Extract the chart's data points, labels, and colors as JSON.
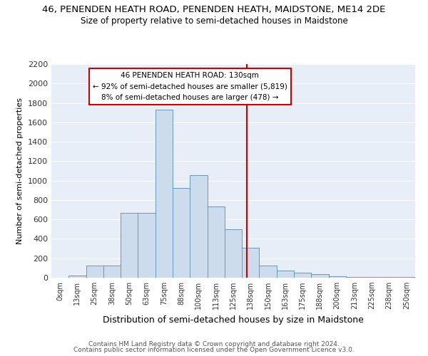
{
  "title1": "46, PENENDEN HEATH ROAD, PENENDEN HEATH, MAIDSTONE, ME14 2DE",
  "title2": "Size of property relative to semi-detached houses in Maidstone",
  "xlabel": "Distribution of semi-detached houses by size in Maidstone",
  "ylabel": "Number of semi-detached properties",
  "footer1": "Contains HM Land Registry data © Crown copyright and database right 2024.",
  "footer2": "Contains public sector information licensed under the Open Government Licence v3.0.",
  "bar_labels": [
    "0sqm",
    "13sqm",
    "25sqm",
    "38sqm",
    "50sqm",
    "63sqm",
    "75sqm",
    "88sqm",
    "100sqm",
    "113sqm",
    "125sqm",
    "138sqm",
    "150sqm",
    "163sqm",
    "175sqm",
    "188sqm",
    "200sqm",
    "213sqm",
    "225sqm",
    "238sqm",
    "250sqm"
  ],
  "bar_values": [
    0,
    20,
    125,
    125,
    665,
    665,
    1730,
    925,
    1055,
    735,
    500,
    305,
    125,
    70,
    50,
    40,
    15,
    8,
    5,
    5,
    8
  ],
  "bar_color": "#ccdcec",
  "bar_edge_color": "#6699bb",
  "bg_color": "#e8eef8",
  "grid_color": "#ffffff",
  "vline_color": "#cc0000",
  "annotation_line1": "46 PENENDEN HEATH ROAD: 130sqm",
  "annotation_line2": "← 92% of semi-detached houses are smaller (5,819)",
  "annotation_line3": "8% of semi-detached houses are larger (478) →",
  "annotation_box_color": "#cc0000",
  "ylim": [
    0,
    2200
  ],
  "yticks": [
    0,
    200,
    400,
    600,
    800,
    1000,
    1200,
    1400,
    1600,
    1800,
    2000,
    2200
  ],
  "vline_index": 10.77
}
